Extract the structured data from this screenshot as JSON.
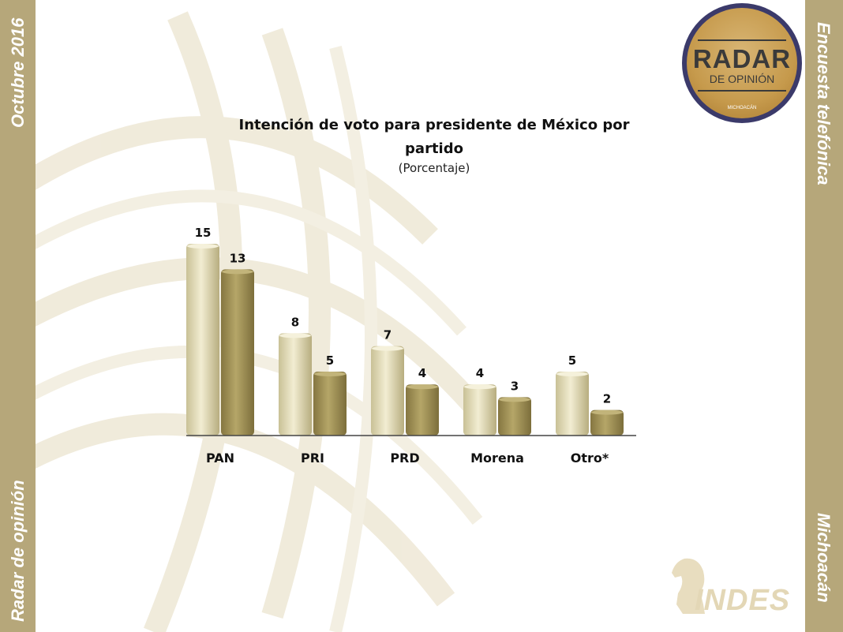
{
  "sidebar_left": {
    "top_text": "Octubre 2016",
    "bottom_text": "Radar de opinión"
  },
  "sidebar_right": {
    "top_text": "Encuesta telefónica",
    "bottom_text": "Michoacán"
  },
  "logo": {
    "line1": "RADAR",
    "line2": "DE OPINIÓN",
    "line3": "MICHOACÁN",
    "icon": "radar-opinion-logo"
  },
  "brand": {
    "name": "INDES",
    "icon": "chess-knight-icon"
  },
  "colors": {
    "sidebar": "#b6a77a",
    "series_light": "#e0d9b4",
    "series_dark": "#a39454"
  },
  "chart_data": {
    "type": "bar",
    "title": "Intención de voto para presidente de México por partido",
    "subtitle": "(Porcentaje)",
    "xlabel": "",
    "ylabel": "",
    "categories": [
      "PAN",
      "PRI",
      "PRD",
      "Morena",
      "Otro*"
    ],
    "series": [
      {
        "values": [
          15,
          8,
          7,
          4,
          5
        ]
      },
      {
        "values": [
          13,
          5,
          4,
          3,
          2
        ]
      }
    ],
    "ylim": [
      0,
      15
    ],
    "grid": false,
    "legend": "none"
  }
}
